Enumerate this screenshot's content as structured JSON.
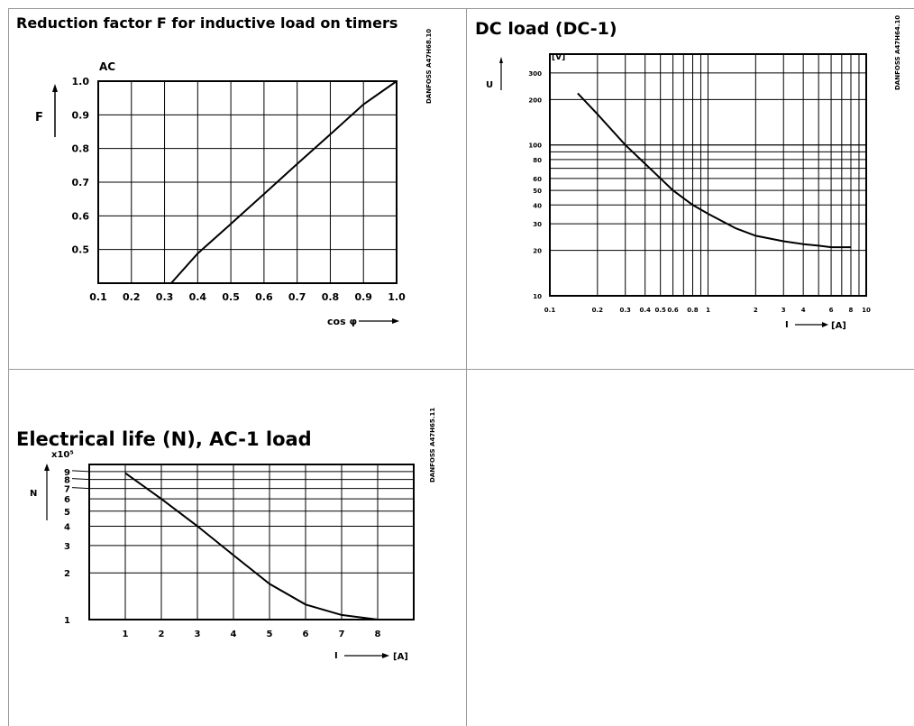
{
  "page": {
    "cells": {
      "top_left_title": "Reduction factor F for inductive load on timers",
      "top_right_title": "DC load (DC-1)",
      "bottom_left_title": "Electrical life (N), AC-1 load"
    }
  },
  "chart_data": [
    {
      "type": "line",
      "title": "Reduction factor F for inductive load on timers",
      "xlabel": "cos φ",
      "ylabel": "F",
      "curve_label": "AC",
      "stamp": "DANFOSS A47H68.10",
      "xlim": [
        0.1,
        1.0
      ],
      "ylim": [
        0.4,
        1.0
      ],
      "xticks": [
        "0.1",
        "0.2",
        "0.3",
        "0.4",
        "0.5",
        "0.6",
        "0.7",
        "0.8",
        "0.9",
        "1.0"
      ],
      "yticks": [
        "0.5",
        "0.6",
        "0.7",
        "0.8",
        "0.9",
        "1.0"
      ],
      "grid": true,
      "series": [
        {
          "x": [
            0.32,
            0.4,
            0.5,
            0.6,
            0.7,
            0.8,
            0.9,
            1.0
          ],
          "y": [
            0.4,
            0.488,
            0.576,
            0.665,
            0.754,
            0.842,
            0.931,
            1.0
          ]
        }
      ]
    },
    {
      "type": "line",
      "title": "DC load (DC-1)",
      "xlabel": "I",
      "xunit": "[A]",
      "ylabel": "U",
      "yunit": "[V]",
      "stamp": "DANFOSS A47H64.10",
      "xscale": "log",
      "yscale": "log",
      "xlim": [
        0.1,
        10
      ],
      "ylim": [
        10,
        400
      ],
      "xticks": [
        "0.1",
        "0.2",
        "0.3",
        "0.4",
        "0.5",
        "0.6",
        "0.8",
        "1",
        "2",
        "3",
        "4",
        "6",
        "8",
        "10"
      ],
      "yticks": [
        "10",
        "20",
        "30",
        "40",
        "50",
        "60",
        "80",
        "100",
        "200",
        "300"
      ],
      "grid": true,
      "series": [
        {
          "x": [
            0.15,
            0.2,
            0.3,
            0.4,
            0.5,
            0.6,
            0.8,
            1,
            1.5,
            2,
            3,
            4,
            5,
            6,
            8
          ],
          "y": [
            220,
            160,
            100,
            75,
            60,
            50,
            40,
            35,
            28,
            25,
            23,
            22,
            21.5,
            21,
            21
          ]
        }
      ]
    },
    {
      "type": "line",
      "title": "Electrical life (N), AC-1 load",
      "xlabel": "I",
      "xunit": "[A]",
      "ylabel": "N",
      "ymultiplier": "x10⁵",
      "stamp": "DANFOSS A47H65.11",
      "yscale": "log",
      "xlim": [
        0,
        9
      ],
      "ylim": [
        1,
        10
      ],
      "xticks": [
        "1",
        "2",
        "3",
        "4",
        "5",
        "6",
        "7",
        "8"
      ],
      "yticks": [
        "1",
        "2",
        "3",
        "4",
        "5",
        "6",
        "7",
        "8",
        "9"
      ],
      "grid": true,
      "series": [
        {
          "x": [
            1,
            2,
            3,
            4,
            5,
            6,
            7,
            8
          ],
          "y": [
            8.8,
            6,
            4,
            2.6,
            1.7,
            1.25,
            1.07,
            1.0
          ]
        }
      ]
    }
  ]
}
